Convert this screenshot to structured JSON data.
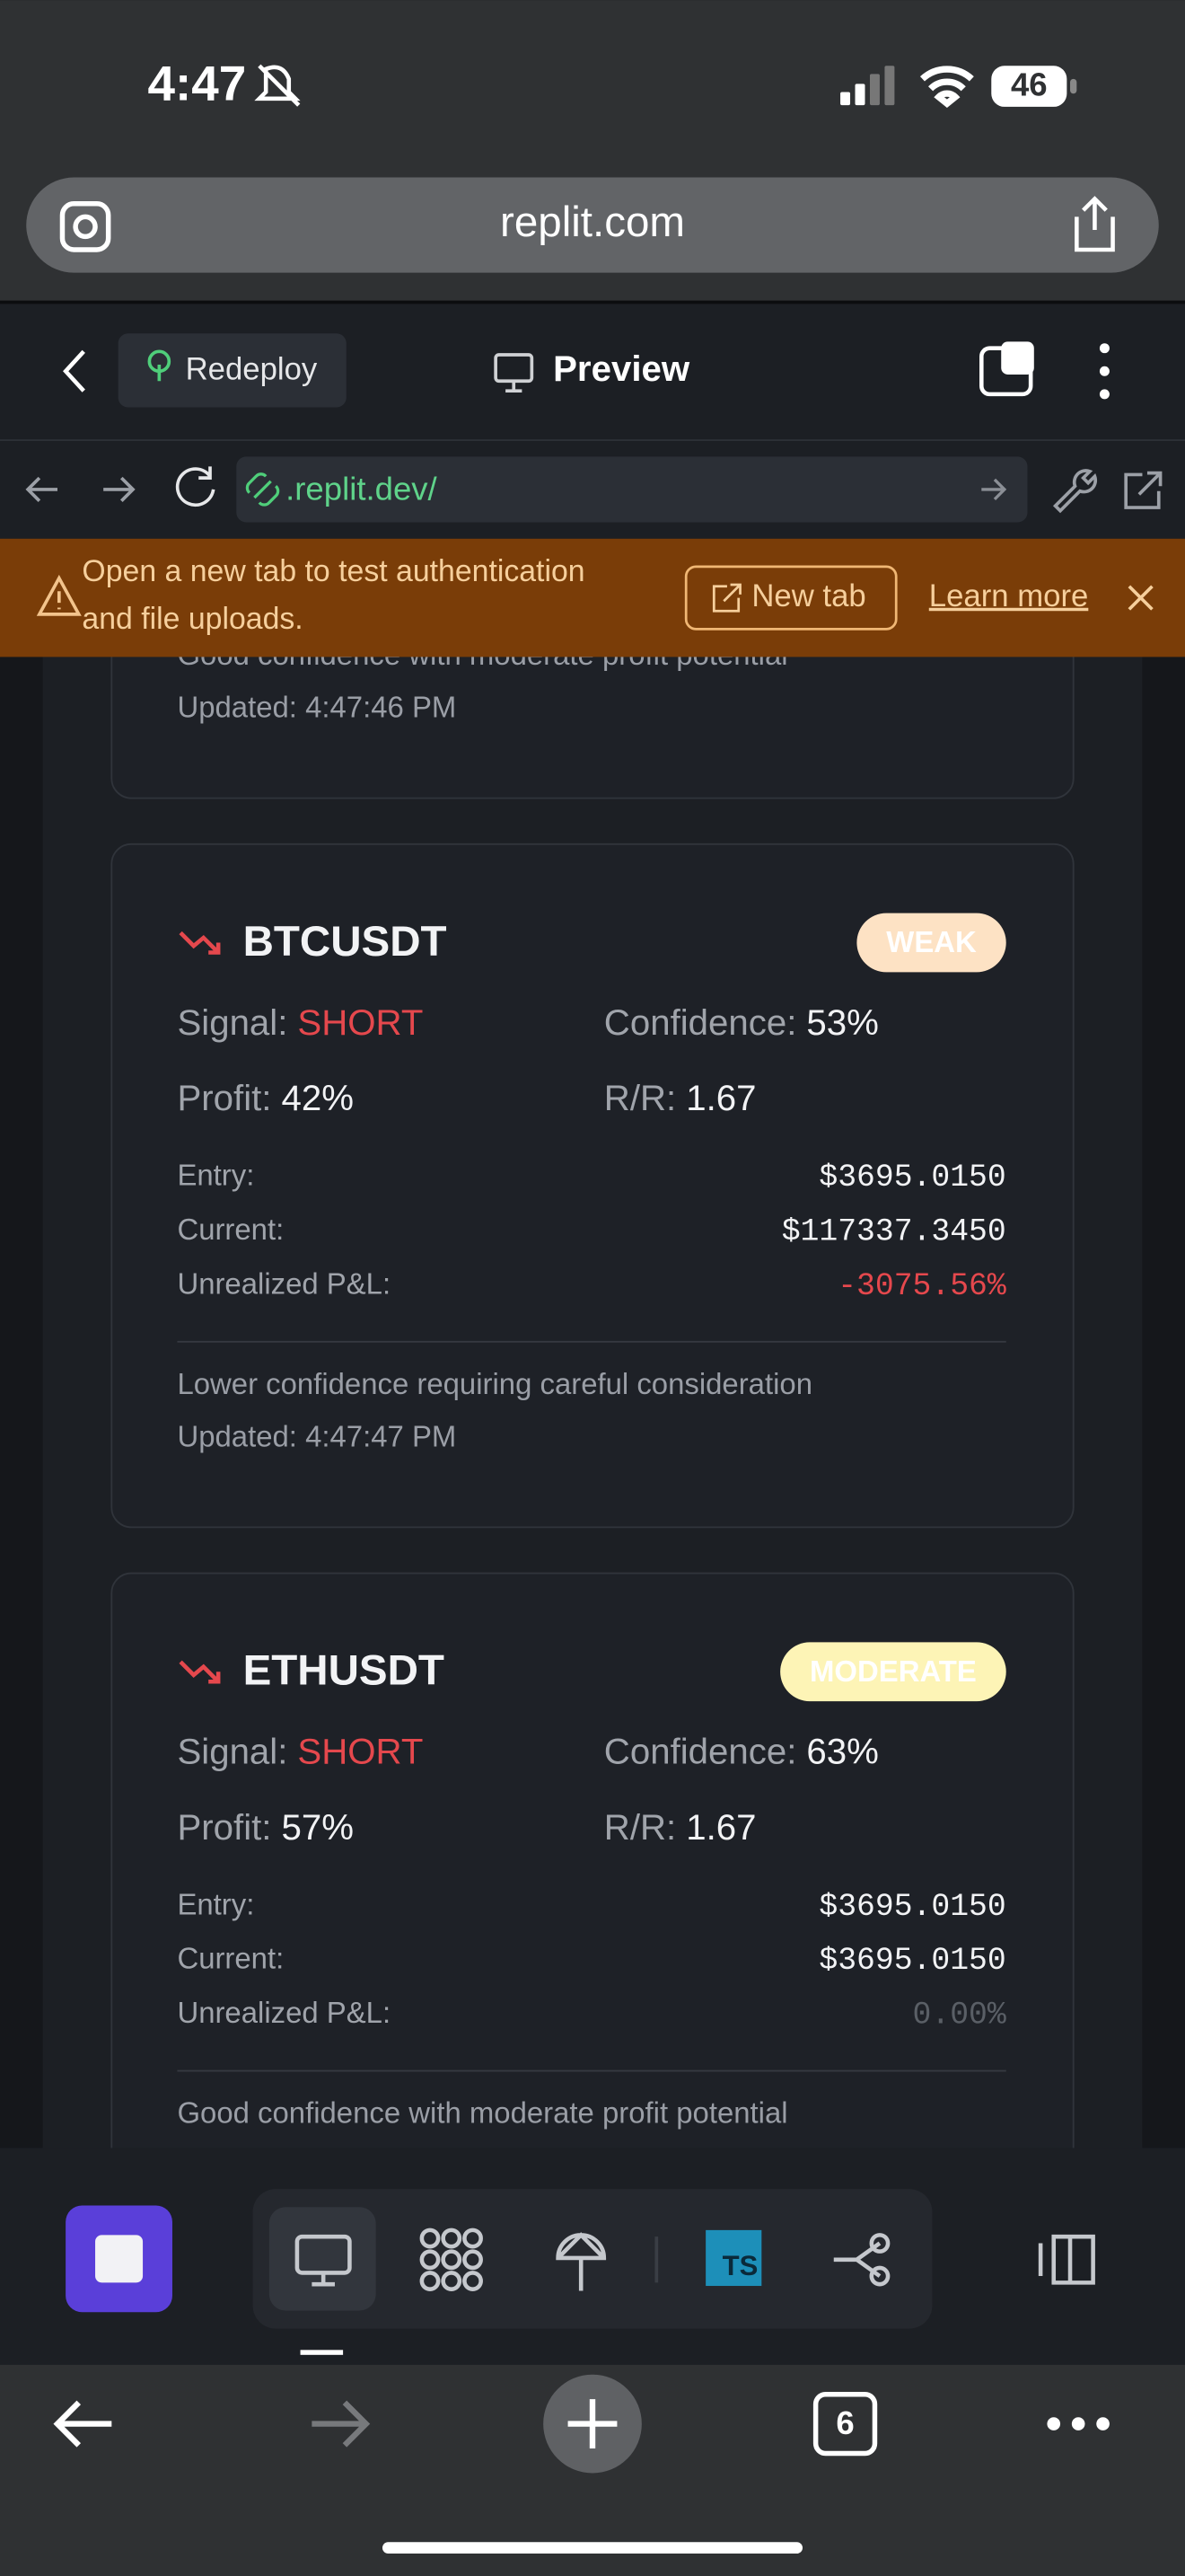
{
  "status_bar": {
    "time": "4:47",
    "battery": "46"
  },
  "browser": {
    "url": "replit.com",
    "tab_count": "6"
  },
  "replit_toolbar": {
    "deploy_button": "Redeploy",
    "view_title": "Preview",
    "dev_url": ".replit.dev/"
  },
  "banner": {
    "message_line1": "Open a new tab to test authentication",
    "message_line2": "and file uploads.",
    "new_tab_button": "New tab",
    "learn_more_link": "Learn more"
  },
  "partial_card": {
    "note": "Good confidence with moderate profit potential",
    "updated": "Updated: 4:47:46 PM"
  },
  "cards": [
    {
      "symbol": "BTCUSDT",
      "strength": "WEAK",
      "signal_label": "Signal:",
      "signal": "SHORT",
      "confidence_label": "Confidence:",
      "confidence": "53%",
      "profit_label": "Profit:",
      "profit": "42%",
      "rr_label": "R/R:",
      "rr": "1.67",
      "entry_label": "Entry:",
      "entry": "$3695.0150",
      "current_label": "Current:",
      "current": "$117337.3450",
      "pnl_label": "Unrealized P&L:",
      "pnl": "-3075.56%",
      "note": "Lower confidence requiring careful consideration",
      "updated": "Updated: 4:47:47 PM"
    },
    {
      "symbol": "ETHUSDT",
      "strength": "MODERATE",
      "signal_label": "Signal:",
      "signal": "SHORT",
      "confidence_label": "Confidence:",
      "confidence": "63%",
      "profit_label": "Profit:",
      "profit": "57%",
      "rr_label": "R/R:",
      "rr": "1.67",
      "entry_label": "Entry:",
      "entry": "$3695.0150",
      "current_label": "Current:",
      "current": "$3695.0150",
      "pnl_label": "Unrealized P&L:",
      "pnl": "0.00%",
      "note": "Good confidence with moderate profit potential"
    }
  ],
  "bottom_toolbar": {
    "typescript_badge": "TS"
  }
}
